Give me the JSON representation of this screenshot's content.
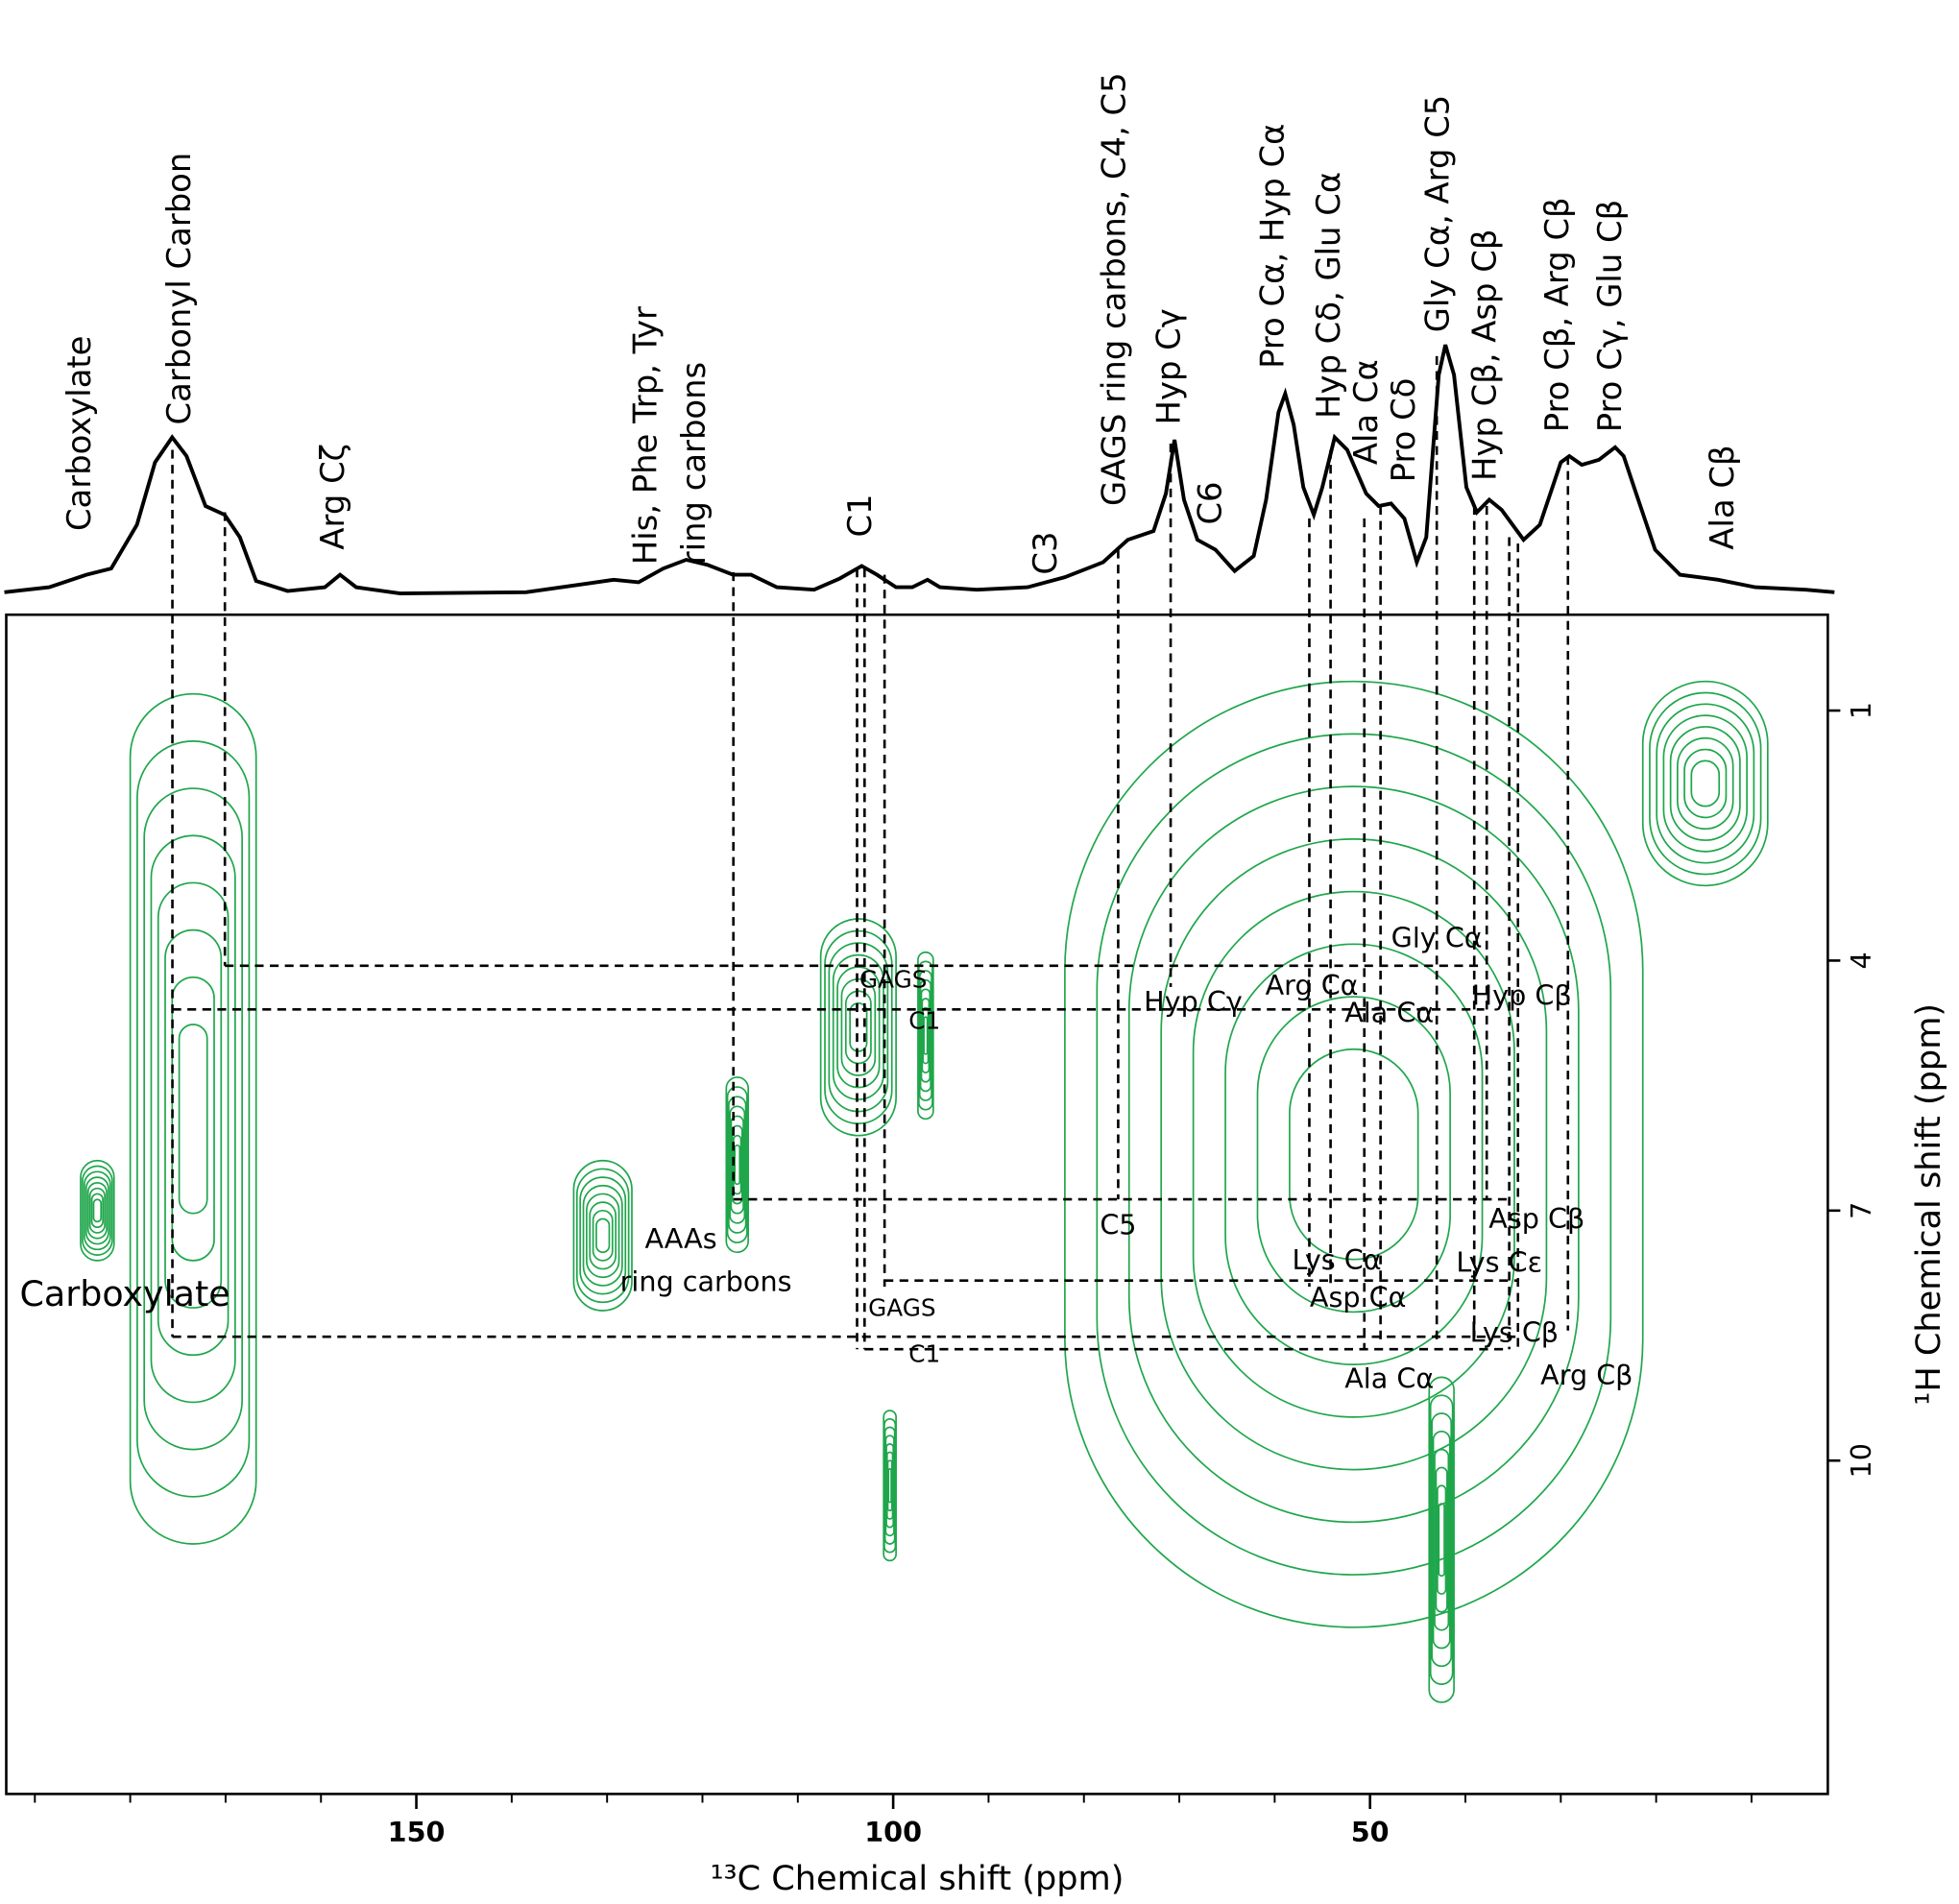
{
  "chart_data": {
    "type": "nmr-2d",
    "x_label": "¹³C Chemical shift (ppm)",
    "y_label": "¹H Chemical shift (ppm)",
    "xlim": [
      193,
      2
    ],
    "ylim": [
      -0.15,
      14
    ],
    "xticks": [
      150,
      100,
      50
    ],
    "xminor_ticks": [
      190,
      180,
      170,
      160,
      140,
      130,
      120,
      110,
      90,
      80,
      70,
      60,
      40,
      30,
      20,
      10
    ],
    "yticks": [
      1,
      4,
      7,
      10
    ],
    "color": "#1fa64b",
    "spectrum_color": "#000000",
    "spectrum": {
      "x": [
        193.2,
        188.5,
        184.6,
        182.0,
        179.3,
        177.4,
        175.6,
        174.1,
        172.1,
        170.1,
        168.5,
        166.8,
        163.5,
        159.6,
        158.0,
        156.3,
        151.7,
        138.5,
        132.0,
        129.3,
        126.7,
        124.1,
        121.7,
        119.5,
        116.8,
        114.9,
        112.2,
        108.3,
        105.6,
        103.3,
        101.7,
        99.7,
        98.0,
        96.4,
        95.1,
        91.2,
        85.9,
        82.0,
        78.0,
        75.4,
        72.7,
        71.4,
        70.5,
        69.5,
        68.1,
        66.2,
        64.2,
        62.2,
        60.9,
        59.6,
        58.9,
        58.0,
        57.0,
        55.9,
        55.0,
        53.7,
        52.4,
        50.4,
        49.1,
        47.8,
        46.4,
        45.1,
        44.1,
        42.8,
        42.1,
        41.2,
        39.9,
        38.8,
        37.5,
        36.2,
        33.9,
        32.2,
        30.0,
        29.1,
        27.8,
        26.0,
        24.3,
        23.4,
        22.1,
        20.1,
        17.5,
        13.5,
        9.6,
        4.3,
        1.3
      ],
      "intensity": [
        0.5,
        2.5,
        7.5,
        10,
        27.5,
        52.5,
        62.5,
        55,
        35,
        31.5,
        22.5,
        5,
        1,
        2.5,
        7.5,
        2.5,
        0,
        0.5,
        4,
        5.5,
        4.5,
        10,
        13.5,
        11.5,
        7.5,
        7.5,
        2.5,
        1.5,
        6,
        11,
        7.5,
        2.5,
        2.5,
        5.5,
        2.5,
        1.5,
        2.5,
        6.5,
        12.5,
        21.5,
        25,
        40,
        61.5,
        37.5,
        21.5,
        17.5,
        9,
        15,
        37.5,
        72.5,
        80,
        67.5,
        42.5,
        31.5,
        42.5,
        62.5,
        57.5,
        40,
        35,
        36,
        30,
        12.5,
        22.5,
        87.5,
        99.5,
        87.5,
        42.5,
        32.5,
        37.5,
        33.5,
        21.5,
        27.5,
        52.5,
        55,
        51.5,
        53.5,
        58.5,
        55,
        40,
        17.5,
        7.5,
        5.5,
        2.5,
        1.5,
        0.5
      ]
    },
    "contour_regions": [
      {
        "x": [
          180.0,
          166.8
        ],
        "y": [
          0.8,
          11.0
        ]
      },
      {
        "x": [
          185.2,
          181.7
        ],
        "y": [
          6.4,
          7.6
        ]
      },
      {
        "x": [
          133.5,
          127.4
        ],
        "y": [
          6.4,
          8.2
        ]
      },
      {
        "x": [
          117.5,
          115.2
        ],
        "y": [
          5.4,
          7.5
        ]
      },
      {
        "x": [
          107.6,
          99.7
        ],
        "y": [
          3.5,
          6.1
        ]
      },
      {
        "x": [
          97.4,
          95.8
        ],
        "y": [
          3.9,
          5.9
        ]
      },
      {
        "x": [
          101.0,
          99.7
        ],
        "y": [
          9.4,
          11.2
        ]
      },
      {
        "x": [
          82.0,
          21.4
        ],
        "y": [
          0.65,
          12.0
        ]
      },
      {
        "x": [
          21.4,
          8.3
        ],
        "y": [
          0.65,
          3.1
        ]
      },
      {
        "x": [
          43.8,
          41.2
        ],
        "y": [
          9.0,
          12.9
        ]
      }
    ],
    "peak_labels": [
      "Carboxylate",
      "Carbonyl Carbon",
      "Arg Cζ",
      "His, Phe Trp, Tyr",
      "ring carbons",
      "C1",
      "C3",
      "GAGS ring carbons, C4, C5",
      "Hyp Cγ",
      "C6",
      "Pro Cα, Hyp Cα",
      "Hyp Cδ, Glu Cα",
      "Ala Cα",
      "Pro Cδ",
      "Gly Cα, Arg C5",
      "Hyp Cβ, Asp Cβ",
      "Pro Cβ, Arg Cβ",
      "Pro Cγ, Glu Cβ",
      "Ala Cβ"
    ],
    "cross_labels": [
      "Gly Cα",
      "Arg Cα",
      "GAGS",
      "C1",
      "Hyp Cγ",
      "Ala Cα",
      "Hyp Cβ",
      "C5",
      "AAAs",
      "ring carbons",
      "Asp Cβ",
      "Lys Cα",
      "Lys Cε",
      "Carboxylate",
      "Asp Cα",
      "GAGS",
      "Lys Cβ",
      "C1",
      "Ala Cα",
      "Arg Cβ"
    ]
  }
}
